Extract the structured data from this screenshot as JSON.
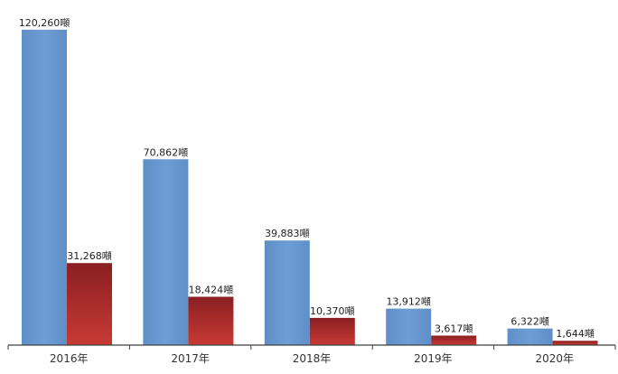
{
  "chart_data": {
    "type": "bar",
    "categories": [
      "2016年",
      "2017年",
      "2018年",
      "2019年",
      "2020年"
    ],
    "series": [
      {
        "values": [
          120260,
          70862,
          39883,
          13912,
          6322
        ],
        "labels": [
          "120,260噸",
          "70,862噸",
          "39,883噸",
          "13,912噸",
          "6,322噸"
        ],
        "color": "#6b9bd2"
      },
      {
        "values": [
          31268,
          18424,
          10370,
          3617,
          1644
        ],
        "labels": [
          "31,268噸",
          "18,424噸",
          "10,370噸",
          "3,617噸",
          "1,644噸"
        ],
        "color": "#a8282b"
      }
    ],
    "title": "",
    "xlabel": "",
    "ylabel": "",
    "ylim": [
      0,
      124000
    ],
    "grid": false,
    "legend": "none"
  }
}
